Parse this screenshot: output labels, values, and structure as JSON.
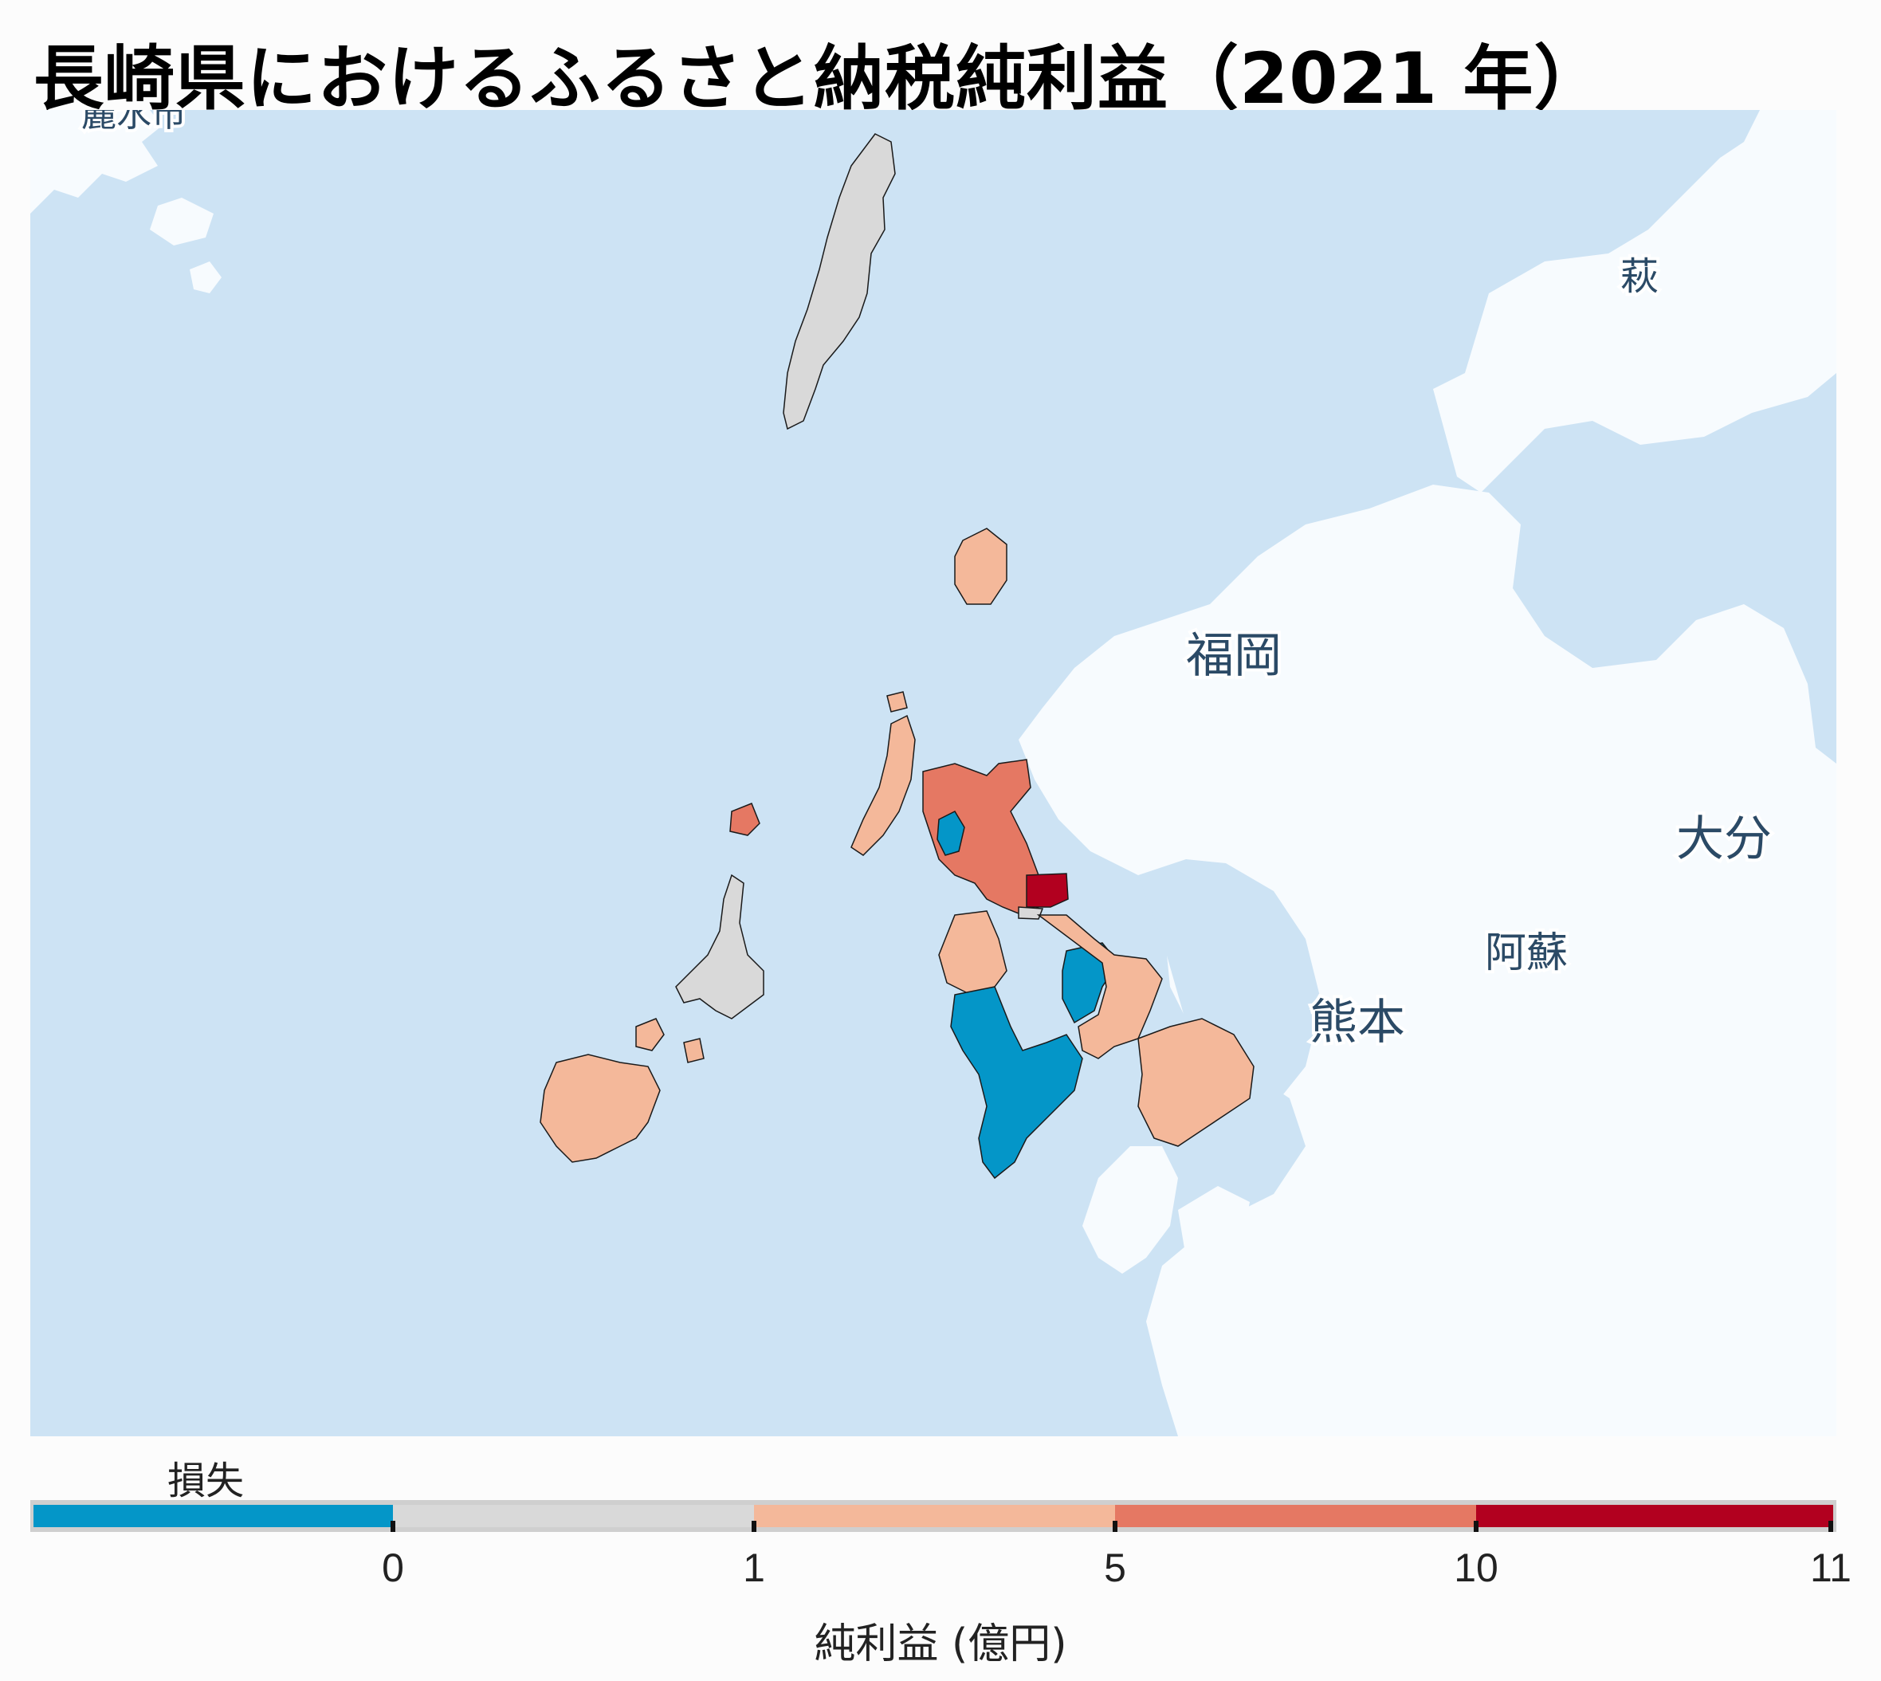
{
  "title": "長崎県におけるふるさと納税純利益（2021 年）",
  "map": {
    "colors": {
      "sea": "#cde3f4",
      "land": "#f7fbfe",
      "border": "#1a1a1a",
      "no_data": "#d9d9d9",
      "loss": "#0496c8",
      "band_0_1": "#d9d9d9",
      "band_1_5": "#f4b89a",
      "band_5_10": "#e57863",
      "band_10_11": "#b2001f"
    },
    "place_labels": [
      {
        "name": "label-fukuoka",
        "text": "福岡"
      },
      {
        "name": "label-oita",
        "text": "大分"
      },
      {
        "name": "label-aso",
        "text": "阿蘇"
      },
      {
        "name": "label-kumamoto",
        "text": "熊本"
      },
      {
        "name": "label-hagi",
        "text": "萩"
      },
      {
        "name": "label-reisu",
        "text": "麗水市"
      }
    ]
  },
  "legend": {
    "loss_label": "損失",
    "title": "純利益 (億円)",
    "ticks": [
      "0",
      "1",
      "5",
      "10",
      "11"
    ],
    "bins": [
      {
        "label": "損失",
        "color": "#0496c8"
      },
      {
        "from": 0,
        "to": 1,
        "color": "#d9d9d9"
      },
      {
        "from": 1,
        "to": 5,
        "color": "#f4b89a"
      },
      {
        "from": 5,
        "to": 10,
        "color": "#e57863"
      },
      {
        "from": 10,
        "to": 11,
        "color": "#b2001f"
      }
    ]
  }
}
